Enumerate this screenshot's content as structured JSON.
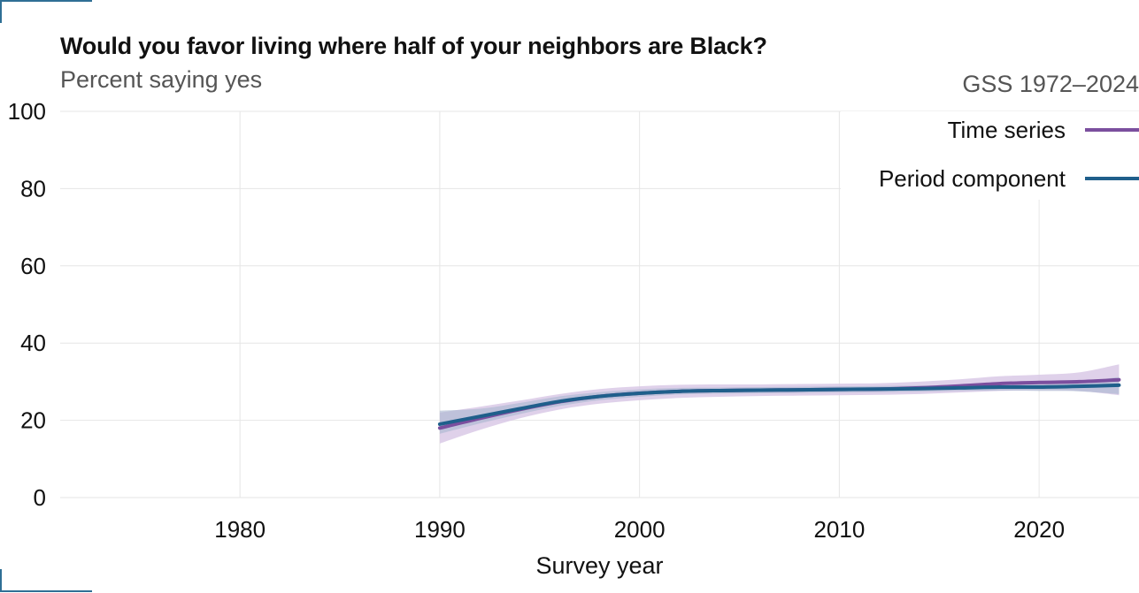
{
  "header": {
    "title": "Would you favor living where half of your neighbors are Black?",
    "subtitle": "Percent saying yes",
    "source": "GSS 1972–2024"
  },
  "colors": {
    "time_series": "#7b4f9e",
    "time_series_band": "#d9c9e6",
    "period_component": "#1f5f8b",
    "period_band": "#a8b6cf",
    "grid": "#e6e6e6",
    "frame": "#2f6f95"
  },
  "chart_data": {
    "type": "line",
    "xlabel": "Survey year",
    "ylabel": "",
    "xlim": [
      1971,
      2025
    ],
    "ylim": [
      0,
      100
    ],
    "x_ticks": [
      1980,
      1990,
      2000,
      2010,
      2020
    ],
    "y_ticks": [
      0,
      20,
      40,
      60,
      80,
      100
    ],
    "grid": true,
    "legend_position": "top-right",
    "series": [
      {
        "name": "Time series",
        "color": "#7b4f9e",
        "x": [
          1990,
          1992,
          1994,
          1996,
          1998,
          2000,
          2002,
          2004,
          2006,
          2008,
          2010,
          2012,
          2014,
          2016,
          2018,
          2020,
          2022,
          2024
        ],
        "y": [
          18.0,
          20.5,
          22.8,
          24.8,
          26.2,
          27.0,
          27.5,
          27.7,
          27.8,
          27.9,
          28.0,
          28.1,
          28.4,
          28.9,
          29.5,
          29.8,
          30.0,
          30.5
        ],
        "lower": [
          14.0,
          17.5,
          20.5,
          22.8,
          24.3,
          25.2,
          25.8,
          26.1,
          26.3,
          26.4,
          26.5,
          26.6,
          26.8,
          27.2,
          27.6,
          27.8,
          27.6,
          26.5
        ],
        "upper": [
          22.0,
          23.5,
          25.1,
          26.8,
          28.1,
          28.8,
          29.2,
          29.3,
          29.3,
          29.4,
          29.5,
          29.6,
          30.0,
          30.6,
          31.4,
          31.8,
          32.4,
          34.5
        ]
      },
      {
        "name": "Period component",
        "color": "#1f5f8b",
        "x": [
          1990,
          1992,
          1994,
          1996,
          1998,
          2000,
          2002,
          2004,
          2006,
          2008,
          2010,
          2012,
          2014,
          2016,
          2018,
          2020,
          2022,
          2024
        ],
        "y": [
          19.0,
          21.0,
          23.0,
          24.9,
          26.2,
          27.0,
          27.5,
          27.7,
          27.8,
          27.9,
          28.0,
          28.1,
          28.2,
          28.4,
          28.6,
          28.6,
          28.8,
          29.1
        ],
        "lower": [
          16.5,
          19.2,
          21.6,
          23.7,
          25.2,
          26.1,
          26.7,
          26.9,
          27.0,
          27.1,
          27.2,
          27.3,
          27.4,
          27.6,
          27.7,
          27.6,
          27.5,
          26.8
        ],
        "upper": [
          22.5,
          23.0,
          24.5,
          26.2,
          27.3,
          28.0,
          28.4,
          28.5,
          28.6,
          28.7,
          28.8,
          28.9,
          29.0,
          29.2,
          29.5,
          29.6,
          30.0,
          31.2
        ]
      }
    ]
  }
}
